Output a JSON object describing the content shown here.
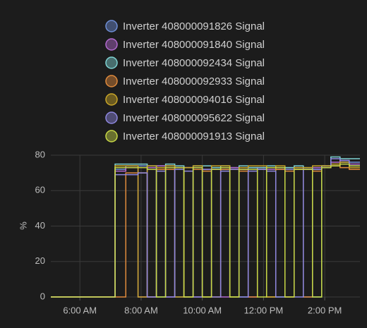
{
  "chart_data": {
    "type": "line",
    "step": true,
    "y_label": "%",
    "x": [
      5.05,
      7.05,
      7.15,
      7.5,
      7.9,
      8.2,
      8.5,
      8.8,
      9.1,
      9.4,
      9.7,
      10.0,
      10.3,
      10.6,
      10.9,
      11.2,
      11.5,
      11.8,
      12.1,
      12.4,
      12.7,
      13.0,
      13.3,
      13.6,
      13.9,
      14.2,
      14.5,
      14.8,
      15.15
    ],
    "xlim": [
      5.05,
      15.15
    ],
    "xticks": [
      {
        "value": 6,
        "label": "6:00 AM"
      },
      {
        "value": 8,
        "label": "8:00 AM"
      },
      {
        "value": 10,
        "label": "10:00 AM"
      },
      {
        "value": 12,
        "label": "12:00 PM"
      },
      {
        "value": 14,
        "label": "2:00 PM"
      }
    ],
    "ylim": [
      0,
      80
    ],
    "yticks": [
      0,
      20,
      40,
      60,
      80
    ],
    "grid": true,
    "series": [
      {
        "name": "Inverter 408000091826 Signal",
        "color": "#6f8fd6",
        "values": [
          0,
          0,
          72,
          74,
          74,
          0,
          74,
          74,
          0,
          73,
          73,
          0,
          72,
          72,
          73,
          0,
          73,
          72,
          0,
          73,
          73,
          72,
          0,
          72,
          73,
          74,
          76,
          76,
          76
        ]
      },
      {
        "name": "Inverter 408000091840 Signal",
        "color": "#b36ad0",
        "values": [
          0,
          0,
          71,
          73,
          0,
          73,
          74,
          0,
          73,
          73,
          0,
          72,
          72,
          0,
          73,
          72,
          0,
          73,
          72,
          72,
          0,
          73,
          72,
          73,
          74,
          76,
          77,
          75,
          75
        ]
      },
      {
        "name": "Inverter 408000092434 Signal",
        "color": "#7fd3d3",
        "values": [
          0,
          0,
          75,
          75,
          75,
          74,
          0,
          75,
          74,
          0,
          74,
          74,
          73,
          74,
          0,
          74,
          73,
          73,
          74,
          0,
          73,
          74,
          73,
          0,
          74,
          79,
          78,
          78,
          78
        ]
      },
      {
        "name": "Inverter 408000092933 Signal",
        "color": "#e08a3c",
        "values": [
          0,
          0,
          0,
          70,
          70,
          0,
          72,
          72,
          73,
          0,
          72,
          71,
          0,
          72,
          72,
          71,
          0,
          72,
          0,
          72,
          71,
          72,
          0,
          71,
          73,
          74,
          73,
          72,
          72
        ]
      },
      {
        "name": "Inverter 408000094016 Signal",
        "color": "#c9a628",
        "values": [
          0,
          0,
          74,
          74,
          0,
          74,
          73,
          74,
          0,
          73,
          74,
          0,
          74,
          74,
          0,
          73,
          74,
          74,
          0,
          74,
          0,
          73,
          73,
          74,
          74,
          75,
          76,
          73,
          73
        ]
      },
      {
        "name": "Inverter 408000095622 Signal",
        "color": "#8f88e0",
        "values": [
          0,
          0,
          69,
          69,
          70,
          0,
          71,
          0,
          72,
          71,
          0,
          72,
          0,
          71,
          72,
          0,
          71,
          72,
          71,
          0,
          72,
          0,
          72,
          72,
          73,
          78,
          77,
          74,
          74
        ]
      },
      {
        "name": "Inverter 408000091913 Signal",
        "color": "#c8d846",
        "values": [
          0,
          0,
          73,
          73,
          73,
          72,
          0,
          73,
          73,
          0,
          73,
          0,
          72,
          73,
          0,
          72,
          72,
          0,
          73,
          73,
          0,
          72,
          72,
          0,
          73,
          74,
          75,
          74,
          74
        ]
      }
    ]
  }
}
